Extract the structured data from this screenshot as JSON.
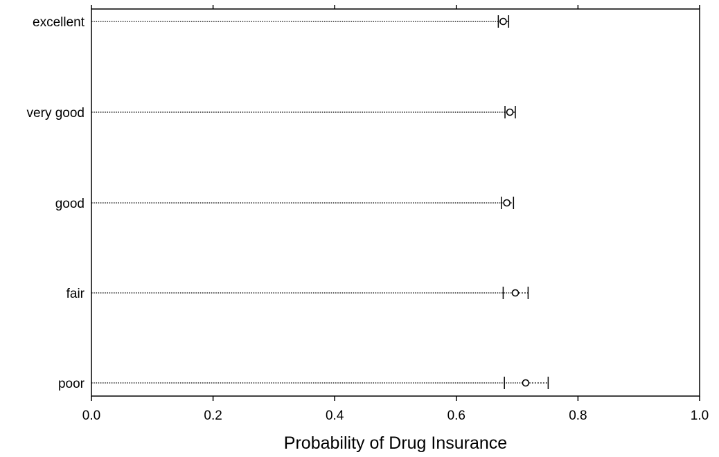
{
  "chart_data": {
    "type": "dot",
    "categories": [
      "excellent",
      "very good",
      "good",
      "fair",
      "poor"
    ],
    "series": [
      {
        "estimate": [
          0.677,
          0.688,
          0.683,
          0.697,
          0.714
        ],
        "ci_lower": [
          0.669,
          0.68,
          0.674,
          0.677,
          0.679
        ],
        "ci_upper": [
          0.686,
          0.697,
          0.694,
          0.718,
          0.751
        ]
      }
    ],
    "xlabel": "Probability of Drug Insurance",
    "ylabel": "",
    "xlim": [
      0.0,
      1.0
    ],
    "x_ticks": [
      0.0,
      0.2,
      0.4,
      0.6,
      0.8,
      1.0
    ],
    "x_tick_labels": [
      "0.0",
      "0.2",
      "0.4",
      "0.6",
      "0.8",
      "1.0"
    ],
    "grid": false,
    "dotted_leader_lines": true,
    "colors": {
      "ink": "#000000",
      "background": "#ffffff"
    }
  }
}
